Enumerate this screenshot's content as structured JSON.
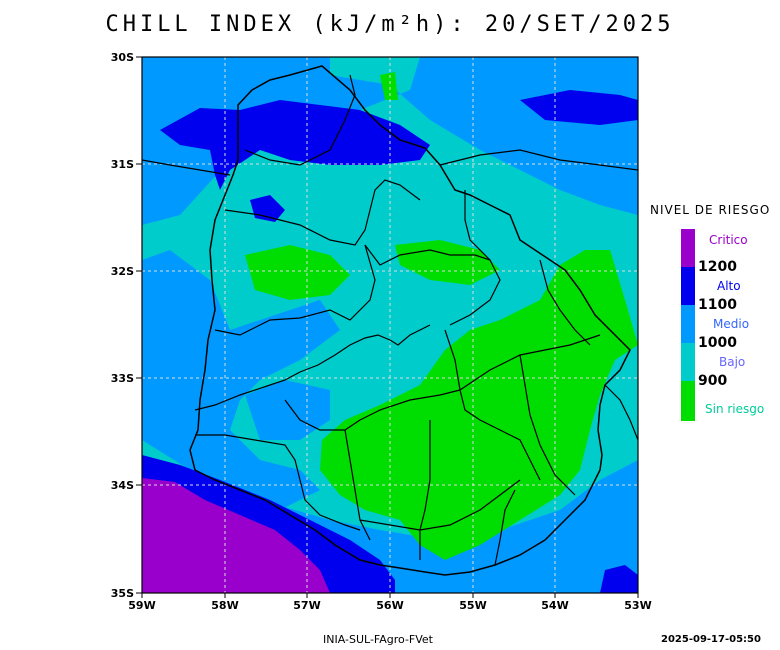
{
  "title": "CHILL INDEX (kJ/m²h): 20/SET/2025",
  "map": {
    "lat_labels": [
      "30S",
      "31S",
      "32S",
      "33S",
      "34S",
      "35S"
    ],
    "lon_labels": [
      "59W",
      "58W",
      "57W",
      "56W",
      "55W",
      "54W",
      "53W"
    ],
    "lat_range": [
      -35,
      -30
    ],
    "lon_range": [
      -59,
      -53
    ],
    "grid": "dashed"
  },
  "legend": {
    "title": "NIVEL DE RIESGO",
    "categories": [
      {
        "name": "Critico",
        "color": "#9900cc",
        "text_color": "#9900cc"
      },
      {
        "name": "Alto",
        "color": "#0000ee",
        "text_color": "#0000ee"
      },
      {
        "name": "Medio",
        "color": "#0099ff",
        "text_color": "#3366ff"
      },
      {
        "name": "Bajo",
        "color": "#00cccc",
        "text_color": "#6666ff"
      },
      {
        "name": "Sin riesgo",
        "color": "#00dd00",
        "text_color": "#00cc99"
      }
    ],
    "breaks": [
      "1200",
      "1100",
      "1000",
      "900"
    ]
  },
  "footer": {
    "credit": "INIA-SUL-FAgro-FVet",
    "timestamp": "2025-09-17-05:50"
  }
}
